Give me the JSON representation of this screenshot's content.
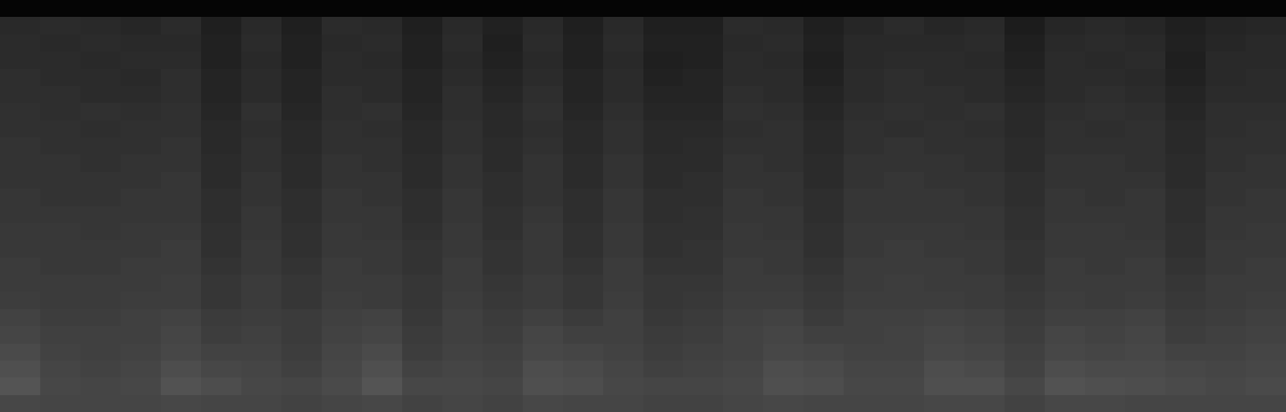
{
  "chart_data": {
    "type": "heatmap",
    "tick_labels": false,
    "zlim": [
      0,
      1
    ],
    "cells": [
      [
        0.02,
        0.02,
        0.02,
        0.02,
        0.02,
        0.02,
        0.02,
        0.02,
        0.02,
        0.02,
        0.02,
        0.02,
        0.02,
        0.02,
        0.02,
        0.02,
        0.02,
        0.02,
        0.02,
        0.02,
        0.02,
        0.02,
        0.02,
        0.02,
        0.02,
        0.02,
        0.02,
        0.02,
        0.02,
        0.02,
        0.02,
        0.02
      ],
      [
        0.16,
        0.17,
        0.16,
        0.15,
        0.17,
        0.12,
        0.16,
        0.12,
        0.17,
        0.16,
        0.12,
        0.16,
        0.13,
        0.16,
        0.12,
        0.16,
        0.12,
        0.12,
        0.17,
        0.16,
        0.12,
        0.15,
        0.17,
        0.15,
        0.16,
        0.11,
        0.15,
        0.16,
        0.15,
        0.12,
        0.14,
        0.15
      ],
      [
        0.17,
        0.16,
        0.17,
        0.16,
        0.16,
        0.13,
        0.17,
        0.13,
        0.16,
        0.17,
        0.13,
        0.17,
        0.12,
        0.17,
        0.13,
        0.17,
        0.13,
        0.13,
        0.16,
        0.17,
        0.13,
        0.16,
        0.16,
        0.16,
        0.17,
        0.12,
        0.16,
        0.17,
        0.16,
        0.13,
        0.15,
        0.16
      ],
      [
        0.17,
        0.17,
        0.16,
        0.17,
        0.17,
        0.13,
        0.16,
        0.13,
        0.17,
        0.16,
        0.13,
        0.16,
        0.13,
        0.16,
        0.13,
        0.16,
        0.12,
        0.13,
        0.17,
        0.16,
        0.12,
        0.16,
        0.17,
        0.17,
        0.16,
        0.13,
        0.17,
        0.16,
        0.17,
        0.12,
        0.16,
        0.16
      ],
      [
        0.18,
        0.17,
        0.17,
        0.16,
        0.18,
        0.14,
        0.17,
        0.14,
        0.17,
        0.17,
        0.14,
        0.17,
        0.14,
        0.17,
        0.14,
        0.17,
        0.13,
        0.14,
        0.17,
        0.17,
        0.13,
        0.17,
        0.18,
        0.17,
        0.17,
        0.14,
        0.17,
        0.17,
        0.16,
        0.13,
        0.16,
        0.17
      ],
      [
        0.18,
        0.18,
        0.17,
        0.17,
        0.18,
        0.14,
        0.17,
        0.14,
        0.18,
        0.17,
        0.14,
        0.18,
        0.15,
        0.18,
        0.14,
        0.17,
        0.14,
        0.14,
        0.18,
        0.17,
        0.14,
        0.17,
        0.18,
        0.18,
        0.17,
        0.15,
        0.17,
        0.18,
        0.17,
        0.14,
        0.17,
        0.17
      ],
      [
        0.19,
        0.18,
        0.19,
        0.18,
        0.19,
        0.15,
        0.19,
        0.15,
        0.18,
        0.19,
        0.15,
        0.18,
        0.16,
        0.19,
        0.15,
        0.18,
        0.15,
        0.15,
        0.19,
        0.18,
        0.15,
        0.18,
        0.19,
        0.18,
        0.19,
        0.16,
        0.18,
        0.19,
        0.18,
        0.15,
        0.18,
        0.18
      ],
      [
        0.19,
        0.19,
        0.18,
        0.19,
        0.19,
        0.16,
        0.18,
        0.16,
        0.19,
        0.18,
        0.16,
        0.19,
        0.16,
        0.18,
        0.16,
        0.19,
        0.16,
        0.16,
        0.18,
        0.19,
        0.16,
        0.19,
        0.18,
        0.19,
        0.18,
        0.16,
        0.19,
        0.18,
        0.19,
        0.16,
        0.18,
        0.19
      ],
      [
        0.2,
        0.19,
        0.19,
        0.19,
        0.2,
        0.16,
        0.19,
        0.16,
        0.19,
        0.19,
        0.16,
        0.19,
        0.17,
        0.19,
        0.16,
        0.19,
        0.16,
        0.17,
        0.19,
        0.19,
        0.16,
        0.19,
        0.2,
        0.19,
        0.19,
        0.17,
        0.19,
        0.19,
        0.19,
        0.16,
        0.19,
        0.19
      ],
      [
        0.2,
        0.2,
        0.19,
        0.2,
        0.2,
        0.17,
        0.19,
        0.17,
        0.2,
        0.19,
        0.17,
        0.2,
        0.17,
        0.2,
        0.17,
        0.2,
        0.17,
        0.17,
        0.2,
        0.19,
        0.17,
        0.2,
        0.2,
        0.2,
        0.19,
        0.17,
        0.2,
        0.2,
        0.19,
        0.17,
        0.19,
        0.2
      ],
      [
        0.2,
        0.2,
        0.2,
        0.2,
        0.21,
        0.17,
        0.2,
        0.17,
        0.2,
        0.2,
        0.17,
        0.2,
        0.18,
        0.2,
        0.17,
        0.2,
        0.17,
        0.18,
        0.2,
        0.2,
        0.17,
        0.2,
        0.21,
        0.2,
        0.2,
        0.18,
        0.2,
        0.2,
        0.2,
        0.17,
        0.2,
        0.2
      ],
      [
        0.21,
        0.2,
        0.2,
        0.21,
        0.21,
        0.18,
        0.2,
        0.18,
        0.21,
        0.2,
        0.18,
        0.21,
        0.18,
        0.2,
        0.18,
        0.21,
        0.18,
        0.18,
        0.21,
        0.2,
        0.18,
        0.21,
        0.21,
        0.21,
        0.2,
        0.18,
        0.21,
        0.2,
        0.21,
        0.18,
        0.2,
        0.21
      ],
      [
        0.21,
        0.21,
        0.21,
        0.21,
        0.21,
        0.18,
        0.21,
        0.18,
        0.21,
        0.21,
        0.18,
        0.21,
        0.19,
        0.21,
        0.18,
        0.21,
        0.18,
        0.19,
        0.21,
        0.21,
        0.18,
        0.21,
        0.21,
        0.21,
        0.21,
        0.19,
        0.21,
        0.21,
        0.21,
        0.18,
        0.21,
        0.21
      ],
      [
        0.22,
        0.22,
        0.21,
        0.22,
        0.22,
        0.19,
        0.21,
        0.19,
        0.22,
        0.21,
        0.19,
        0.22,
        0.19,
        0.22,
        0.19,
        0.22,
        0.19,
        0.19,
        0.22,
        0.21,
        0.19,
        0.22,
        0.22,
        0.22,
        0.21,
        0.19,
        0.22,
        0.22,
        0.21,
        0.19,
        0.21,
        0.22
      ],
      [
        0.22,
        0.22,
        0.22,
        0.22,
        0.23,
        0.19,
        0.22,
        0.19,
        0.22,
        0.22,
        0.2,
        0.22,
        0.2,
        0.22,
        0.19,
        0.22,
        0.19,
        0.2,
        0.22,
        0.22,
        0.19,
        0.22,
        0.23,
        0.22,
        0.22,
        0.2,
        0.22,
        0.22,
        0.22,
        0.19,
        0.22,
        0.22
      ],
      [
        0.23,
        0.22,
        0.22,
        0.23,
        0.23,
        0.2,
        0.22,
        0.2,
        0.23,
        0.22,
        0.2,
        0.23,
        0.2,
        0.22,
        0.2,
        0.23,
        0.2,
        0.2,
        0.23,
        0.22,
        0.2,
        0.23,
        0.23,
        0.23,
        0.22,
        0.2,
        0.23,
        0.22,
        0.23,
        0.2,
        0.22,
        0.23
      ],
      [
        0.23,
        0.23,
        0.23,
        0.23,
        0.24,
        0.21,
        0.23,
        0.21,
        0.23,
        0.23,
        0.21,
        0.23,
        0.21,
        0.23,
        0.21,
        0.23,
        0.21,
        0.21,
        0.23,
        0.23,
        0.21,
        0.23,
        0.24,
        0.23,
        0.23,
        0.21,
        0.23,
        0.23,
        0.23,
        0.21,
        0.23,
        0.23
      ],
      [
        0.24,
        0.23,
        0.23,
        0.24,
        0.24,
        0.21,
        0.23,
        0.21,
        0.24,
        0.23,
        0.21,
        0.24,
        0.22,
        0.23,
        0.21,
        0.24,
        0.21,
        0.22,
        0.24,
        0.24,
        0.22,
        0.24,
        0.24,
        0.24,
        0.23,
        0.22,
        0.24,
        0.23,
        0.24,
        0.22,
        0.23,
        0.24
      ],
      [
        0.26,
        0.24,
        0.24,
        0.25,
        0.26,
        0.23,
        0.24,
        0.23,
        0.25,
        0.26,
        0.22,
        0.25,
        0.23,
        0.25,
        0.23,
        0.25,
        0.22,
        0.23,
        0.25,
        0.26,
        0.23,
        0.25,
        0.25,
        0.26,
        0.25,
        0.23,
        0.25,
        0.25,
        0.26,
        0.23,
        0.24,
        0.25
      ],
      [
        0.27,
        0.25,
        0.25,
        0.25,
        0.27,
        0.24,
        0.25,
        0.23,
        0.26,
        0.27,
        0.23,
        0.25,
        0.24,
        0.27,
        0.25,
        0.25,
        0.23,
        0.24,
        0.26,
        0.27,
        0.25,
        0.25,
        0.26,
        0.27,
        0.26,
        0.24,
        0.27,
        0.26,
        0.27,
        0.24,
        0.25,
        0.26
      ],
      [
        0.29,
        0.26,
        0.25,
        0.26,
        0.28,
        0.26,
        0.26,
        0.24,
        0.27,
        0.29,
        0.24,
        0.26,
        0.25,
        0.28,
        0.27,
        0.26,
        0.24,
        0.25,
        0.26,
        0.28,
        0.27,
        0.26,
        0.26,
        0.28,
        0.27,
        0.25,
        0.28,
        0.27,
        0.28,
        0.26,
        0.26,
        0.27
      ],
      [
        0.31,
        0.27,
        0.26,
        0.27,
        0.3,
        0.28,
        0.27,
        0.25,
        0.28,
        0.31,
        0.26,
        0.27,
        0.26,
        0.3,
        0.29,
        0.27,
        0.25,
        0.26,
        0.27,
        0.3,
        0.29,
        0.27,
        0.27,
        0.3,
        0.29,
        0.26,
        0.3,
        0.29,
        0.29,
        0.28,
        0.27,
        0.28
      ],
      [
        0.33,
        0.28,
        0.27,
        0.28,
        0.32,
        0.3,
        0.28,
        0.27,
        0.29,
        0.33,
        0.28,
        0.28,
        0.27,
        0.31,
        0.3,
        0.28,
        0.27,
        0.27,
        0.28,
        0.31,
        0.3,
        0.28,
        0.28,
        0.31,
        0.31,
        0.28,
        0.32,
        0.31,
        0.3,
        0.29,
        0.28,
        0.29
      ],
      [
        0.28,
        0.27,
        0.27,
        0.27,
        0.28,
        0.27,
        0.27,
        0.26,
        0.27,
        0.28,
        0.26,
        0.27,
        0.26,
        0.28,
        0.27,
        0.27,
        0.26,
        0.26,
        0.27,
        0.28,
        0.27,
        0.27,
        0.27,
        0.28,
        0.28,
        0.26,
        0.28,
        0.28,
        0.27,
        0.27,
        0.27,
        0.27
      ]
    ]
  }
}
